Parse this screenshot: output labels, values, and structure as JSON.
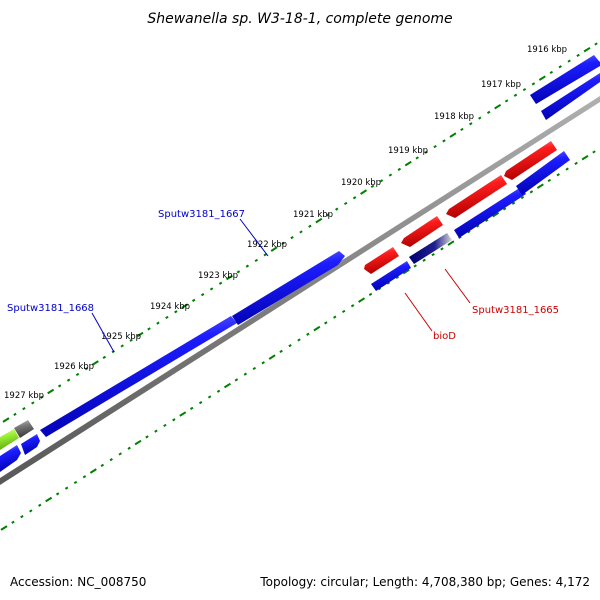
{
  "title": "Shewanella sp. W3-18-1, complete genome",
  "ticks": [
    {
      "label": "1916 kbp"
    },
    {
      "label": "1917 kbp"
    },
    {
      "label": "1918 kbp"
    },
    {
      "label": "1919 kbp"
    },
    {
      "label": "1920 kbp"
    },
    {
      "label": "1921 kbp"
    },
    {
      "label": "1922 kbp"
    },
    {
      "label": "1923 kbp"
    },
    {
      "label": "1924 kbp"
    },
    {
      "label": "1925 kbp"
    },
    {
      "label": "1926 kbp"
    },
    {
      "label": "1927 kbp"
    }
  ],
  "gene_labels": [
    {
      "text": "Sputw3181_1667",
      "color": "#0000cc"
    },
    {
      "text": "Sputw3181_1668",
      "color": "#0000cc"
    },
    {
      "text": "Sputw3181_1665",
      "color": "#cc0000"
    },
    {
      "text": "bioD",
      "color": "#cc0000"
    }
  ],
  "colors": {
    "forward_gene": "#0000ff",
    "reverse_gene": "#ff0000",
    "highlight_gene": "#000080",
    "pseudo_gene": "#808080",
    "rna_gene": "#99ee33",
    "backbone": "#808080",
    "tick": "#008000"
  },
  "footer": {
    "accession": "Accession: NC_008750",
    "info": "Topology: circular; Length: 4,708,380 bp; Genes: 4,172"
  }
}
